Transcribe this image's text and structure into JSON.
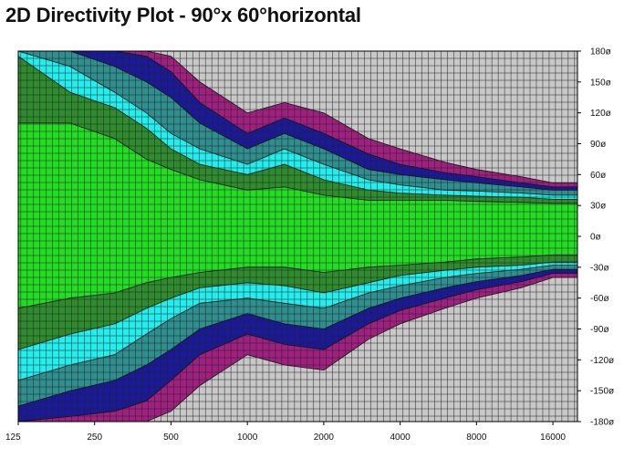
{
  "title": "2D Directivity Plot - 90°x 60°horizontal",
  "colors": {
    "light_green": "#22dd22",
    "dark_green": "#2e8b2e",
    "cyan": "#22eeee",
    "teal": "#2f8f8f",
    "navy": "#1a1a99",
    "magenta": "#a0207f",
    "gray": "#c8c8c8",
    "grid": "#222222"
  },
  "chart_data": {
    "type": "heatmap",
    "title": "2D Directivity Plot - 90°x 60°horizontal",
    "x_scale": "log2",
    "xlim": [
      125,
      20000
    ],
    "ylim": [
      -180,
      180
    ],
    "x_ticks": [
      "125",
      "250",
      "500",
      "1000",
      "2000",
      "4000",
      "8000",
      "16000"
    ],
    "x_tick_values": [
      125,
      250,
      500,
      1000,
      2000,
      4000,
      8000,
      16000
    ],
    "y_ticks": [
      "180ø",
      "150ø",
      "120ø",
      "90ø",
      "60ø",
      "30ø",
      "0ø",
      "-30ø",
      "-60ø",
      "-90ø",
      "-120ø",
      "-150ø",
      "-180ø"
    ],
    "y_tick_values": [
      180,
      150,
      120,
      90,
      60,
      30,
      0,
      -30,
      -60,
      -90,
      -120,
      -150,
      -180
    ],
    "band_colors": [
      "#22dd22",
      "#2e8b2e",
      "#22eeee",
      "#2f8f8f",
      "#1a1a99",
      "#a0207f",
      "#c8c8c8"
    ],
    "freqs": [
      125,
      200,
      300,
      400,
      500,
      650,
      1000,
      1400,
      2000,
      3000,
      4000,
      6000,
      8000,
      12000,
      16000,
      20000
    ],
    "upper_boundaries_deg": [
      [
        110,
        110,
        95,
        75,
        65,
        55,
        45,
        48,
        40,
        35,
        35,
        35,
        34,
        33,
        32,
        32
      ],
      [
        175,
        140,
        125,
        105,
        85,
        70,
        60,
        70,
        55,
        45,
        42,
        40,
        39,
        38,
        36,
        36
      ],
      [
        180,
        165,
        140,
        120,
        100,
        85,
        70,
        85,
        70,
        55,
        50,
        45,
        44,
        42,
        40,
        40
      ],
      [
        180,
        180,
        165,
        150,
        135,
        110,
        85,
        100,
        85,
        65,
        60,
        55,
        52,
        48,
        45,
        45
      ],
      [
        180,
        180,
        180,
        175,
        160,
        130,
        100,
        115,
        100,
        80,
        70,
        62,
        58,
        52,
        48,
        48
      ],
      [
        180,
        180,
        180,
        180,
        175,
        150,
        120,
        130,
        120,
        95,
        85,
        72,
        65,
        58,
        52,
        52
      ]
    ],
    "lower_boundaries_deg": [
      [
        -70,
        -60,
        -55,
        -45,
        -40,
        -35,
        -30,
        -30,
        -35,
        -30,
        -28,
        -25,
        -22,
        -20,
        -18,
        -18
      ],
      [
        -110,
        -95,
        -85,
        -70,
        -60,
        -50,
        -45,
        -48,
        -55,
        -45,
        -38,
        -33,
        -30,
        -28,
        -25,
        -25
      ],
      [
        -140,
        -125,
        -115,
        -95,
        -80,
        -65,
        -60,
        -65,
        -70,
        -55,
        -48,
        -40,
        -36,
        -32,
        -28,
        -28
      ],
      [
        -165,
        -150,
        -140,
        -125,
        -110,
        -90,
        -75,
        -85,
        -90,
        -70,
        -60,
        -50,
        -44,
        -38,
        -32,
        -32
      ],
      [
        -180,
        -175,
        -170,
        -160,
        -140,
        -115,
        -95,
        -105,
        -110,
        -85,
        -72,
        -60,
        -52,
        -44,
        -36,
        -36
      ],
      [
        -180,
        -180,
        -180,
        -180,
        -170,
        -145,
        -115,
        -125,
        -130,
        -100,
        -85,
        -70,
        -60,
        -50,
        -40,
        -40
      ]
    ]
  }
}
